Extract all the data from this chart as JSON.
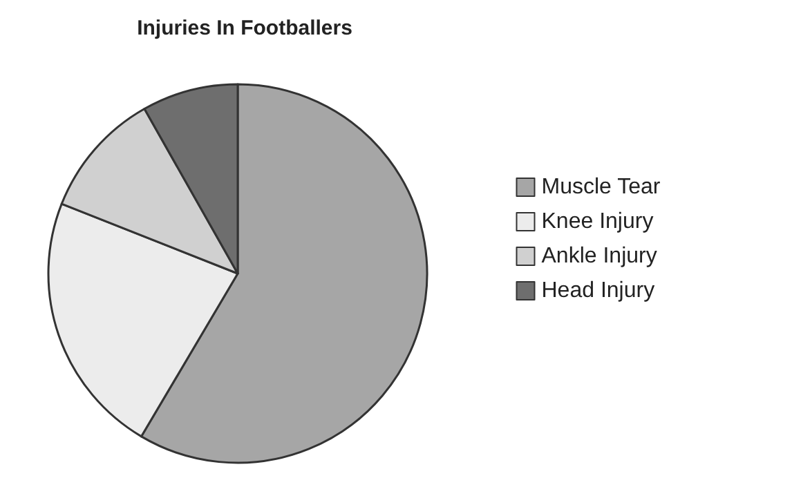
{
  "chart_data": {
    "type": "pie",
    "title": "Injuries In Footballers",
    "categories": [
      "Muscle Tear",
      "Knee Injury",
      "Ankle Injury",
      "Head Injury"
    ],
    "values": [
      58.5,
      22.5,
      10.8,
      8.2
    ],
    "colors": [
      "#a6a6a6",
      "#ececec",
      "#d0d0d0",
      "#6e6e6e"
    ],
    "legend": "right"
  }
}
